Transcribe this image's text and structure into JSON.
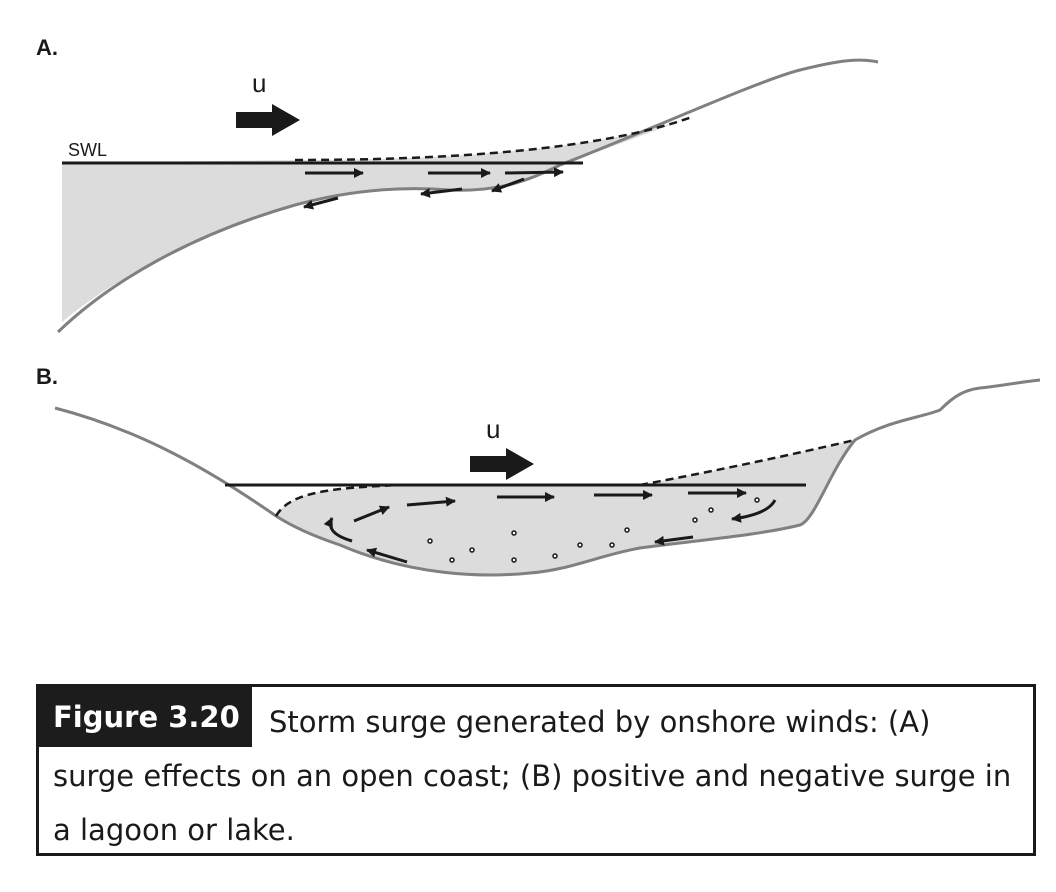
{
  "panels": {
    "a": {
      "label": "A.",
      "wind_label": "u",
      "swl_label": "SWL"
    },
    "b": {
      "label": "B.",
      "wind_label": "u"
    }
  },
  "caption": {
    "figure_number": "Figure 3.20",
    "text": "Storm surge generated by onshore winds: (A) surge effects on an open coast; (B) positive and negative surge in a lagoon or lake."
  },
  "colors": {
    "water_fill": "#dcdcdc",
    "ground_line": "#808080",
    "ink": "#1a1a1a",
    "caption_tag_bg": "#1c1c1c"
  }
}
